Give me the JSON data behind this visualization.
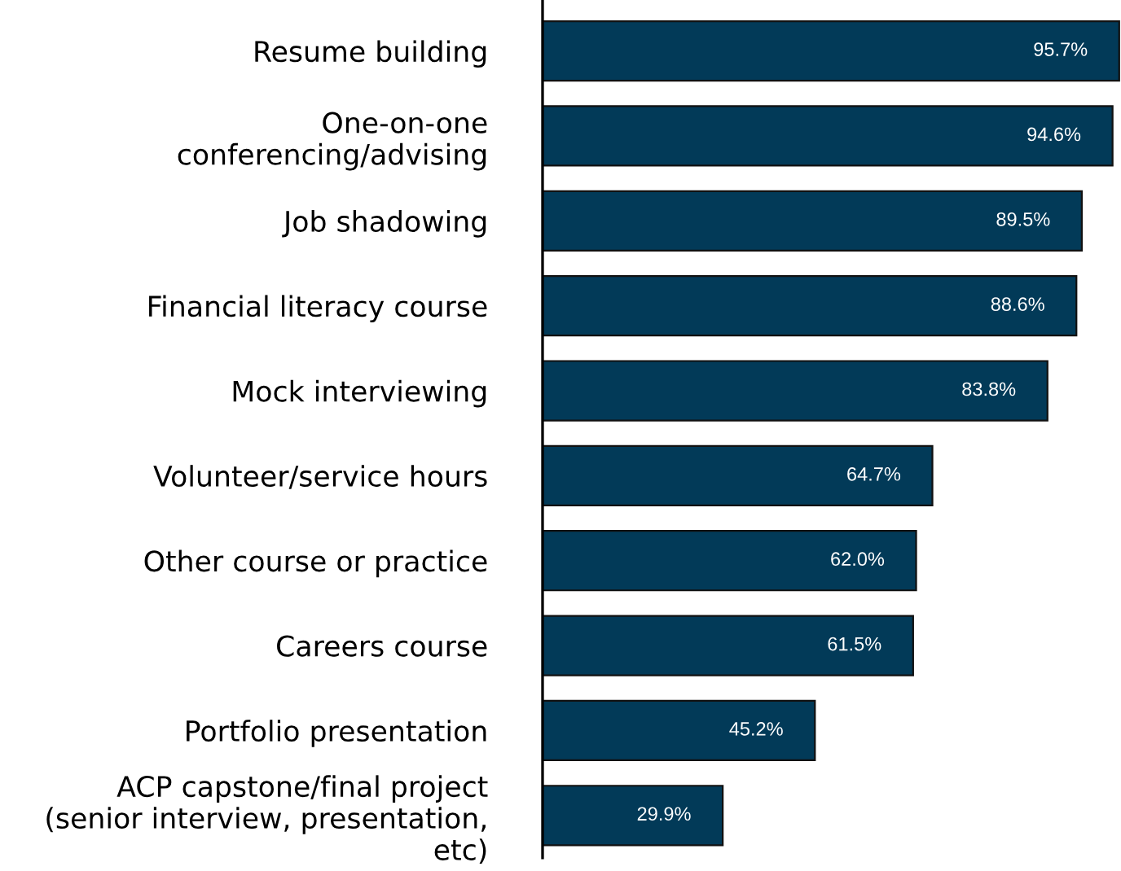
{
  "chart_data": {
    "type": "bar",
    "orientation": "horizontal",
    "categories": [
      "Resume building",
      "One-on-one\nconferencing/advising",
      "Job shadowing",
      "Financial literacy course",
      "Mock interviewing",
      "Volunteer/service hours",
      "Other course or practice",
      "Careers course",
      "Portfolio presentation",
      "ACP capstone/final project\n(senior interview, presentation,\netc)"
    ],
    "values": [
      95.7,
      94.6,
      89.5,
      88.6,
      83.8,
      64.7,
      62.0,
      61.5,
      45.2,
      29.9
    ],
    "value_labels": [
      "95.7%",
      "94.6%",
      "89.5%",
      "88.6%",
      "83.8%",
      "64.7%",
      "62.0%",
      "61.5%",
      "45.2%",
      "29.9%"
    ],
    "color": "#023a58",
    "xlim": [
      0,
      96
    ],
    "tick_labels": "y",
    "grid": false,
    "legend": false
  }
}
